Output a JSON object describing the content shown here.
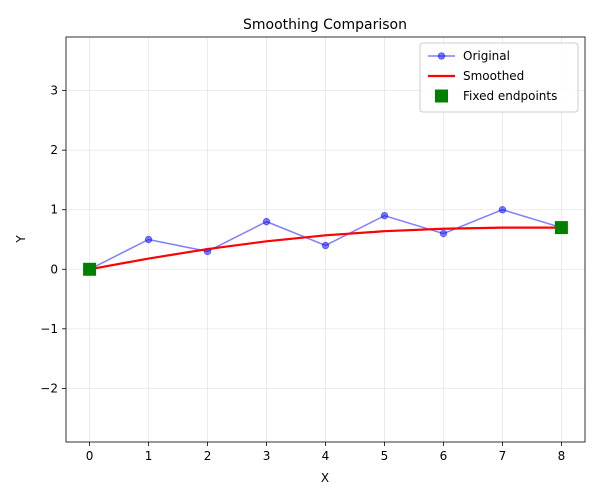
{
  "chart_data": {
    "type": "line",
    "title": "Smoothing Comparison",
    "xlabel": "X",
    "ylabel": "Y",
    "xlim": [
      -0.4,
      8.4
    ],
    "ylim": [
      -2.9,
      3.9
    ],
    "x_ticks": [
      "0",
      "1",
      "2",
      "3",
      "4",
      "5",
      "6",
      "7",
      "8"
    ],
    "y_ticks": [
      "−2",
      "−1",
      "0",
      "1",
      "2",
      "3"
    ],
    "grid": true,
    "legend_position": "top-right",
    "series": [
      {
        "name": "Original",
        "style": "line-markers",
        "color": "#0000ff",
        "x": [
          0,
          1,
          2,
          3,
          4,
          5,
          6,
          7,
          8
        ],
        "y": [
          0.0,
          0.5,
          0.3,
          0.8,
          0.4,
          0.9,
          0.6,
          1.0,
          0.7
        ]
      },
      {
        "name": "Smoothed",
        "style": "line",
        "color": "#ff0000",
        "x": [
          0,
          1,
          2,
          3,
          4,
          5,
          6,
          7,
          8
        ],
        "y": [
          0.0,
          0.18,
          0.34,
          0.47,
          0.57,
          0.64,
          0.68,
          0.7,
          0.7
        ]
      },
      {
        "name": "Fixed endpoints",
        "style": "square-markers",
        "color": "#008000",
        "x": [
          0,
          8
        ],
        "y": [
          0.0,
          0.7
        ]
      }
    ]
  }
}
